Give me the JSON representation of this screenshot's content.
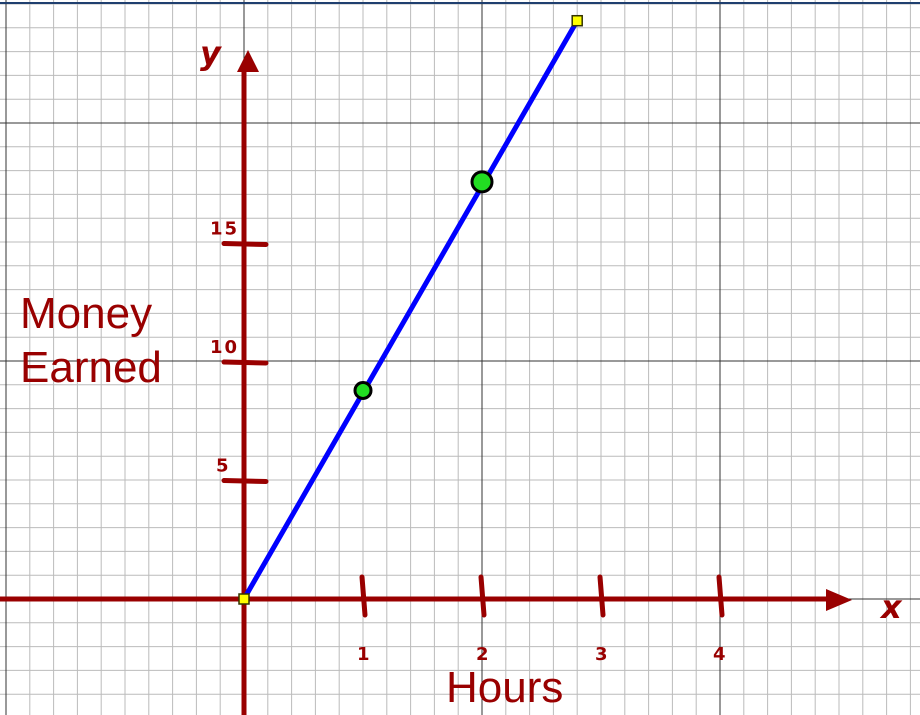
{
  "chart_data": {
    "type": "line",
    "x_axis_letter": "x",
    "y_axis_letter": "y",
    "xlabel": "Hours",
    "ylabel_lines": [
      "Money",
      "Earned"
    ],
    "x_ticks": [
      1,
      2,
      3,
      4
    ],
    "y_ticks": [
      5,
      10,
      15
    ],
    "xlim": [
      -2,
      5
    ],
    "ylim": [
      -5,
      25
    ],
    "grid": true,
    "series": [
      {
        "color": "#0000ff",
        "points": [
          {
            "x": 0,
            "y": 0,
            "marker": "square-yellow"
          },
          {
            "x": 2.8,
            "y": 24.4,
            "marker": "square-yellow"
          }
        ]
      }
    ],
    "highlighted_points": [
      {
        "x": 1,
        "y": 8.8,
        "color": "#22dd22",
        "size": "small"
      },
      {
        "x": 2,
        "y": 17.6,
        "color": "#22dd22",
        "size": "large"
      }
    ],
    "colors": {
      "axis": "#990000",
      "line": "#0000ff",
      "point": "#22dd22",
      "grid_minor": "#bbbbbb",
      "grid_major": "#333333"
    }
  }
}
